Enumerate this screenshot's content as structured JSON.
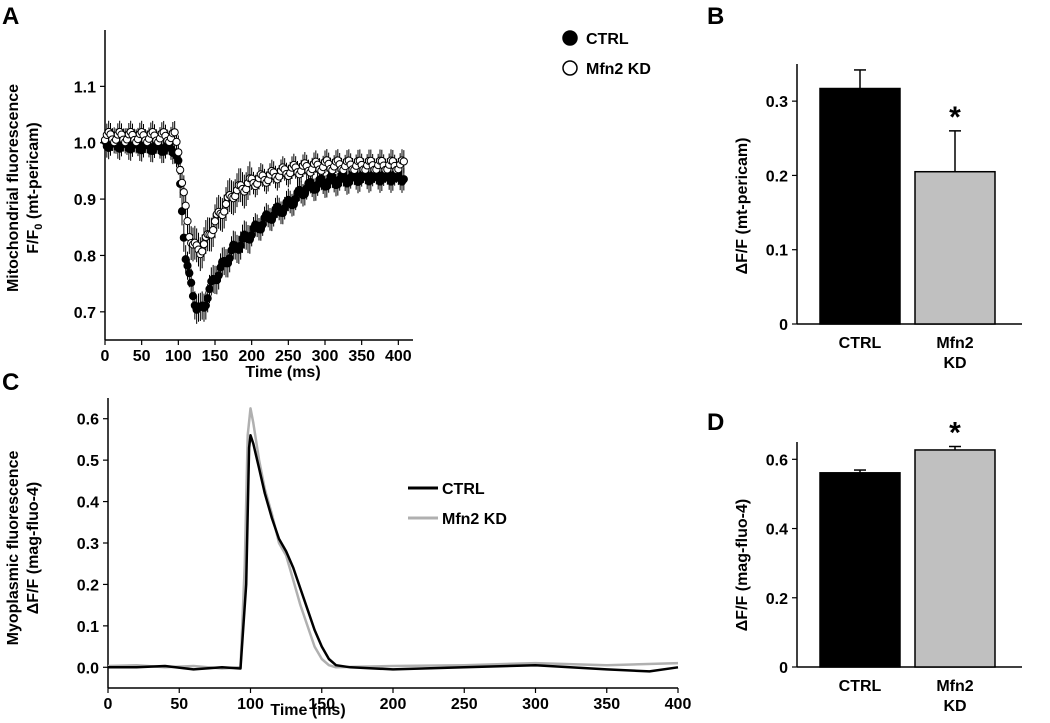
{
  "panels": {
    "A": {
      "letter": "A",
      "ylabel_line1": "Mitochondrial fluorescence",
      "ylabel_line2_pre": "F/F",
      "ylabel_line2_sub": "0",
      "ylabel_line2_post": " (mt-pericam)",
      "xlabel": "Time (ms)"
    },
    "B": {
      "letter": "B",
      "ylabel": "ΔF/F (mt-pericam)",
      "significance": "*"
    },
    "C": {
      "letter": "C",
      "ylabel_line1": "Myoplasmic fluorescence",
      "ylabel_line2": "ΔF/F (mag-fluo-4)",
      "xlabel": "Time (ms)"
    },
    "D": {
      "letter": "D",
      "ylabel": "ΔF/F (mag-fluo-4)",
      "significance": "*"
    }
  },
  "colors": {
    "ctrl": "#000000",
    "mfn2_line": "#b0b0b0",
    "mfn2_bar": "#c0c0c0",
    "axis": "#000000"
  },
  "chart_data": [
    {
      "id": "A",
      "type": "scatter",
      "xlabel": "Time (ms)",
      "ylabel": "Mitochondrial fluorescence F/F0 (mt-pericam)",
      "xlim": [
        0,
        420
      ],
      "ylim": [
        0.65,
        1.2
      ],
      "xticks": [
        0,
        50,
        100,
        150,
        200,
        250,
        300,
        350,
        400
      ],
      "yticks": [
        0.7,
        0.8,
        0.9,
        1.0,
        1.1
      ],
      "ytick_labels": [
        "0.7",
        "0.8",
        "0.9",
        "1.0",
        "1.1"
      ],
      "legend_position": "top-right",
      "series": [
        {
          "name": "CTRL",
          "marker": "filled-circle",
          "keypoints": [
            [
              0,
              1.0
            ],
            [
              95,
              0.99
            ],
            [
              100,
              0.96
            ],
            [
              105,
              0.88
            ],
            [
              110,
              0.8
            ],
            [
              115,
              0.76
            ],
            [
              120,
              0.73
            ],
            [
              125,
              0.71
            ],
            [
              130,
              0.7
            ],
            [
              135,
              0.71
            ],
            [
              140,
              0.73
            ],
            [
              150,
              0.76
            ],
            [
              175,
              0.81
            ],
            [
              200,
              0.84
            ],
            [
              225,
              0.87
            ],
            [
              250,
              0.89
            ],
            [
              275,
              0.92
            ],
            [
              300,
              0.93
            ],
            [
              350,
              0.94
            ],
            [
              408,
              0.94
            ]
          ],
          "error": 0.02,
          "error_peak": 0.025
        },
        {
          "name": "Mfn2 KD",
          "marker": "open-circle",
          "keypoints": [
            [
              0,
              1.01
            ],
            [
              95,
              1.01
            ],
            [
              100,
              0.99
            ],
            [
              105,
              0.93
            ],
            [
              110,
              0.88
            ],
            [
              115,
              0.84
            ],
            [
              120,
              0.82
            ],
            [
              125,
              0.81
            ],
            [
              130,
              0.81
            ],
            [
              140,
              0.83
            ],
            [
              150,
              0.86
            ],
            [
              175,
              0.91
            ],
            [
              200,
              0.93
            ],
            [
              225,
              0.94
            ],
            [
              250,
              0.95
            ],
            [
              300,
              0.96
            ],
            [
              350,
              0.96
            ],
            [
              408,
              0.96
            ]
          ],
          "error": 0.02,
          "error_peak": 0.03
        }
      ]
    },
    {
      "id": "B",
      "type": "bar",
      "categories": [
        "CTRL",
        "Mfn2\nKD"
      ],
      "values": [
        0.317,
        0.205
      ],
      "errors": [
        0.025,
        0.055
      ],
      "ylabel": "ΔF/F (mt-pericam)",
      "ylim": [
        0,
        0.35
      ],
      "yticks": [
        0,
        0.1,
        0.2,
        0.3
      ],
      "ytick_labels": [
        "0",
        "0.1",
        "0.2",
        "0.3"
      ],
      "annotations": [
        {
          "text": "*",
          "category": "Mfn2\nKD"
        }
      ]
    },
    {
      "id": "C",
      "type": "line",
      "xlabel": "Time (ms)",
      "ylabel": "Myoplasmic fluorescence ΔF/F (mag-fluo-4)",
      "xlim": [
        0,
        400
      ],
      "ylim": [
        -0.05,
        0.65
      ],
      "xticks": [
        0,
        50,
        100,
        150,
        200,
        250,
        300,
        350,
        400
      ],
      "yticks": [
        0.0,
        0.1,
        0.2,
        0.3,
        0.4,
        0.5,
        0.6
      ],
      "ytick_labels": [
        "0.0",
        "0.1",
        "0.2",
        "0.3",
        "0.4",
        "0.5",
        "0.6"
      ],
      "legend_position": "center-right",
      "series": [
        {
          "name": "CTRL",
          "points": [
            [
              0,
              0.0
            ],
            [
              20,
              0.0
            ],
            [
              40,
              0.003
            ],
            [
              60,
              -0.005
            ],
            [
              80,
              0.0
            ],
            [
              93,
              -0.003
            ],
            [
              97,
              0.2
            ],
            [
              99,
              0.53
            ],
            [
              100,
              0.56
            ],
            [
              102,
              0.54
            ],
            [
              106,
              0.48
            ],
            [
              110,
              0.42
            ],
            [
              115,
              0.36
            ],
            [
              120,
              0.31
            ],
            [
              125,
              0.28
            ],
            [
              130,
              0.24
            ],
            [
              135,
              0.19
            ],
            [
              140,
              0.14
            ],
            [
              145,
              0.09
            ],
            [
              150,
              0.05
            ],
            [
              155,
              0.02
            ],
            [
              160,
              0.005
            ],
            [
              170,
              0.0
            ],
            [
              200,
              -0.005
            ],
            [
              250,
              0.0
            ],
            [
              300,
              0.005
            ],
            [
              350,
              -0.005
            ],
            [
              380,
              -0.01
            ],
            [
              400,
              0.0
            ]
          ]
        },
        {
          "name": "Mfn2 KD",
          "points": [
            [
              0,
              0.003
            ],
            [
              20,
              0.005
            ],
            [
              40,
              0.0
            ],
            [
              60,
              0.003
            ],
            [
              80,
              -0.003
            ],
            [
              93,
              0.0
            ],
            [
              96,
              0.25
            ],
            [
              98,
              0.56
            ],
            [
              100,
              0.625
            ],
            [
              102,
              0.59
            ],
            [
              106,
              0.5
            ],
            [
              110,
              0.43
            ],
            [
              115,
              0.37
            ],
            [
              120,
              0.3
            ],
            [
              125,
              0.27
            ],
            [
              130,
              0.21
            ],
            [
              135,
              0.15
            ],
            [
              140,
              0.1
            ],
            [
              145,
              0.05
            ],
            [
              150,
              0.02
            ],
            [
              155,
              0.005
            ],
            [
              160,
              0.0
            ],
            [
              200,
              0.003
            ],
            [
              250,
              0.005
            ],
            [
              300,
              0.01
            ],
            [
              350,
              0.005
            ],
            [
              400,
              0.01
            ]
          ]
        }
      ]
    },
    {
      "id": "D",
      "type": "bar",
      "categories": [
        "CTRL",
        "Mfn2\nKD"
      ],
      "values": [
        0.561,
        0.627
      ],
      "errors": [
        0.008,
        0.01
      ],
      "ylabel": "ΔF/F (mag-fluo-4)",
      "ylim": [
        0,
        0.65
      ],
      "yticks": [
        0,
        0.2,
        0.4,
        0.6
      ],
      "ytick_labels": [
        "0",
        "0.2",
        "0.4",
        "0.6"
      ],
      "annotations": [
        {
          "text": "*",
          "category": "Mfn2\nKD"
        }
      ]
    }
  ]
}
